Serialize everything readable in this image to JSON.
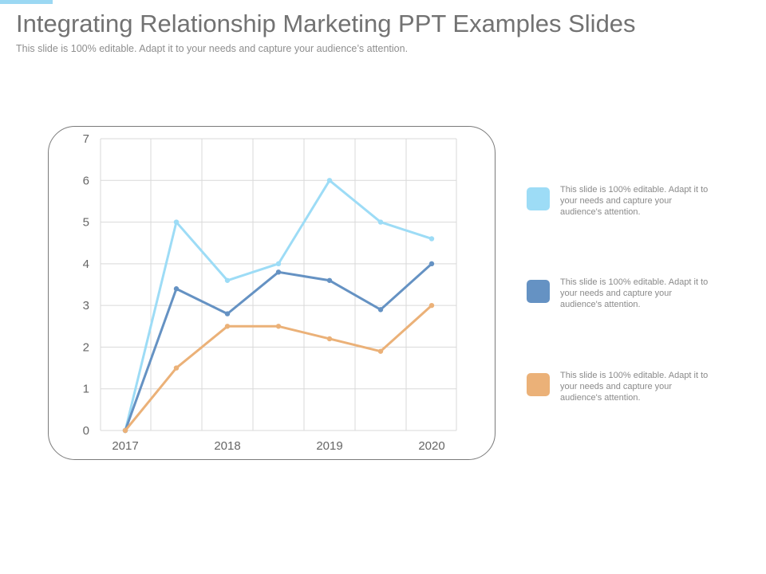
{
  "slide": {
    "title": "Integrating Relationship Marketing PPT Examples Slides",
    "subtitle": "This slide is 100% editable. Adapt it to your needs and capture your audience’s attention."
  },
  "colors": {
    "accent": "#9bd8f3",
    "grid": "#d9d9d9"
  },
  "chart_data": {
    "type": "line",
    "title": "",
    "xlabel": "",
    "ylabel": "",
    "grid": true,
    "legend": "right",
    "ylim": [
      0,
      7
    ],
    "yticks": [
      "0",
      "1",
      "2",
      "3",
      "4",
      "5",
      "6",
      "7"
    ],
    "x_tick_labels": [
      "2017",
      "2018",
      "2019",
      "2020"
    ],
    "x": [
      "2017",
      "",
      "2018",
      "",
      "2019",
      "",
      "2020"
    ],
    "series": [
      {
        "color": "#9ddcf6",
        "values": [
          0,
          5.0,
          3.6,
          4.0,
          6.0,
          5.0,
          4.6
        ]
      },
      {
        "color": "#6592c3",
        "values": [
          0,
          3.4,
          2.8,
          3.8,
          3.6,
          2.9,
          4.0
        ]
      },
      {
        "color": "#ebb178",
        "values": [
          0,
          1.5,
          2.5,
          2.5,
          2.2,
          1.9,
          3.0
        ]
      }
    ]
  },
  "legend": {
    "items": [
      {
        "color": "#9ddcf6",
        "text": "This slide is 100% editable. Adapt it to your needs and capture your audience's attention."
      },
      {
        "color": "#6592c3",
        "text": "This slide is 100% editable. Adapt it to your needs and capture your audience's attention."
      },
      {
        "color": "#ebb178",
        "text": "This slide is 100% editable. Adapt it to your needs and capture your audience's attention."
      }
    ]
  }
}
